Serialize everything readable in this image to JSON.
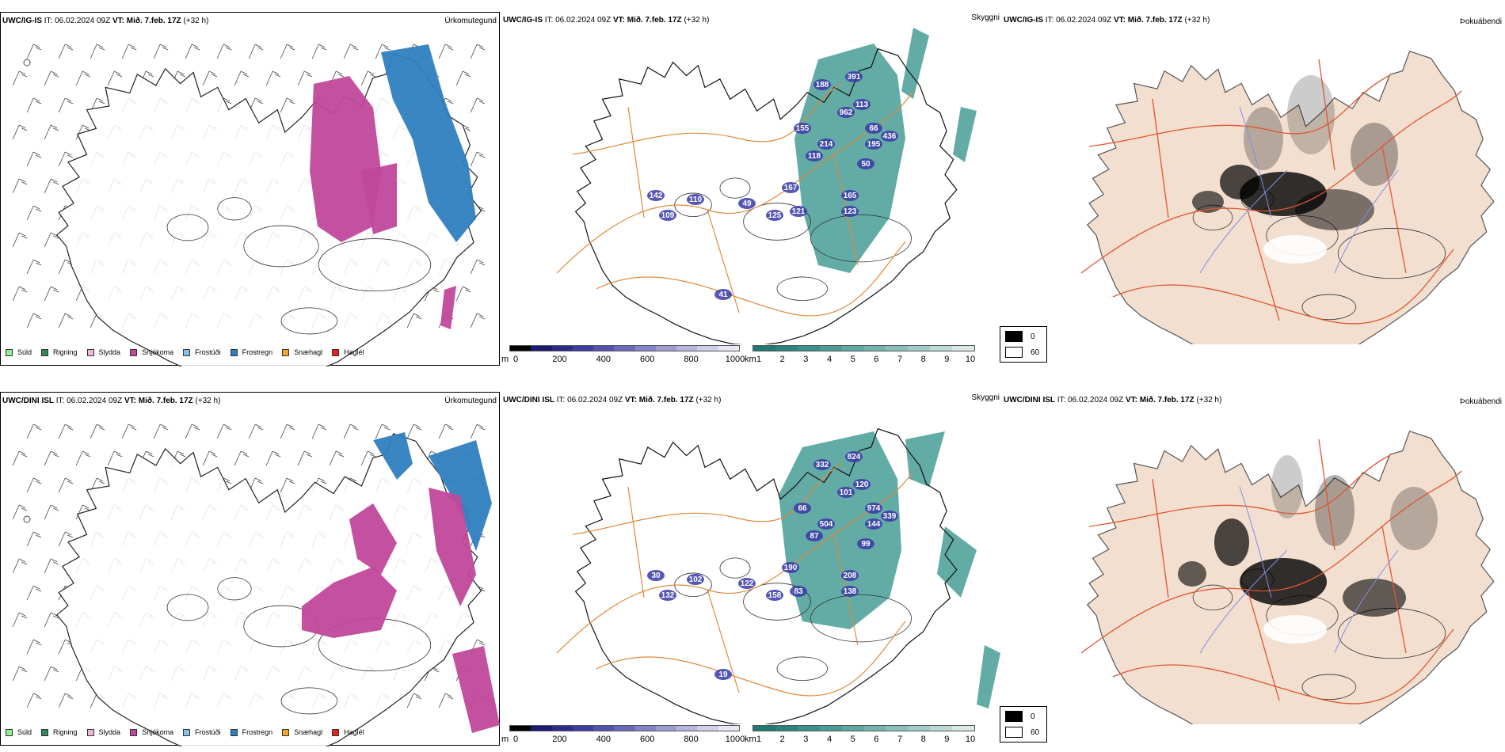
{
  "rows": [
    {
      "model": "UWC/IG-IS",
      "it_label": "IT:",
      "it_value": "06.02.2024 09Z",
      "vt_label": "VT:",
      "vt_value": "Mið. 7.feb. 17Z",
      "lead": "(+32 h)",
      "panels": {
        "precip": "Úrkomutegund",
        "clouds": "Skyggni",
        "fog": "Þokuábendi"
      },
      "cloud_labels": [
        "391",
        "188",
        "962",
        "113",
        "155",
        "214",
        "66",
        "118",
        "195",
        "436",
        "50",
        "167",
        "165",
        "142",
        "110",
        "49",
        "125",
        "121",
        "123",
        "109",
        "41"
      ]
    },
    {
      "model": "UWC/DINI ISL",
      "it_label": "IT:",
      "it_value": "06.02.2024 09Z",
      "vt_label": "VT:",
      "vt_value": "Mið. 7.feb. 17Z",
      "lead": "(+32 h)",
      "panels": {
        "precip": "Úrkomutegund",
        "clouds": "Skyggni",
        "fog": "Þokuábendi"
      },
      "cloud_labels": [
        "824",
        "332",
        "101",
        "120",
        "66",
        "504",
        "974",
        "87",
        "144",
        "339",
        "99",
        "190",
        "208",
        "30",
        "102",
        "122",
        "158",
        "83",
        "138",
        "132",
        "19"
      ]
    }
  ],
  "precip_legend": [
    {
      "label": "Súld",
      "color": "#90ee90"
    },
    {
      "label": "Rigning",
      "color": "#2e8b57"
    },
    {
      "label": "Slydda",
      "color": "#f4b6d8"
    },
    {
      "label": "Snjókoma",
      "color": "#c0489b"
    },
    {
      "label": "Frostúði",
      "color": "#87bfeb"
    },
    {
      "label": "Frostregn",
      "color": "#2f7fc0"
    },
    {
      "label": "Snæhagl",
      "color": "#f5a623"
    },
    {
      "label": "Haglél",
      "color": "#e8221b"
    }
  ],
  "ceiling_bar": {
    "unit": "m",
    "ticks": [
      "0",
      "200",
      "400",
      "600",
      "800",
      "1000"
    ],
    "colors": [
      "#000000",
      "#1a1a6e",
      "#2b2b8c",
      "#3d3da1",
      "#5252b0",
      "#6a6abd",
      "#8383c8",
      "#9c9cd3",
      "#b5b5dd",
      "#cfcfe8",
      "#e8e8f3"
    ]
  },
  "visibility_bar": {
    "unit": "km",
    "ticks": [
      "1",
      "2",
      "3",
      "4",
      "5",
      "6",
      "7",
      "8",
      "9",
      "10"
    ],
    "colors": [
      "#1f7a74",
      "#2b857f",
      "#3a918b",
      "#4b9c96",
      "#5ea8a2",
      "#74b4ae",
      "#8ac0ba",
      "#a2ccc7",
      "#bcd9d5",
      "#d7e8e5"
    ]
  },
  "fog_legend": [
    {
      "label": "0",
      "color": "#000000"
    },
    {
      "label": "60",
      "color": "#ffffff"
    }
  ],
  "colors": {
    "snow": "#c0489b",
    "frost_rain": "#2f7fc0",
    "frost_drizzle": "#87bfeb",
    "visibility": "#2f8f87",
    "ceiling": "#3a3aa8",
    "roads": "#e08a3c",
    "land_fog": "#f2dfd0",
    "red_roads": "#e0552f",
    "rivers": "#7f8fe6"
  }
}
